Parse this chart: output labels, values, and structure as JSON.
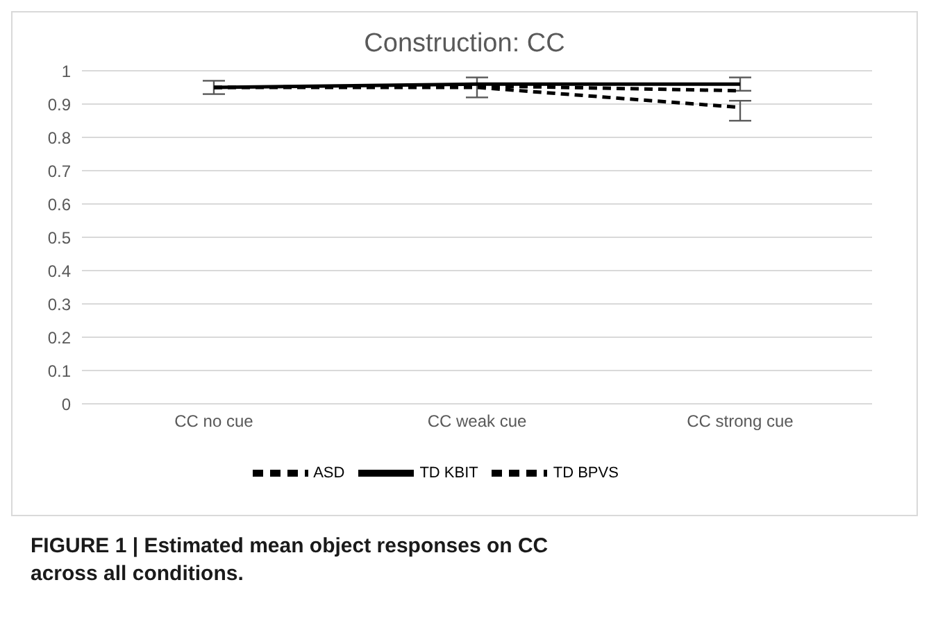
{
  "chart_data": {
    "type": "line",
    "title": "Construction: CC",
    "categories": [
      "CC no cue",
      "CC weak cue",
      "CC strong cue"
    ],
    "series": [
      {
        "name": "ASD",
        "color": "#000000",
        "line_style": "dashed",
        "values": [
          0.95,
          0.95,
          0.89
        ],
        "errors": [
          null,
          0.03,
          [
            0.85,
            0.91
          ]
        ]
      },
      {
        "name": "TD KBIT",
        "color": "#000000",
        "line_style": "solid",
        "values": [
          0.95,
          0.96,
          0.96
        ],
        "errors": [
          0.02,
          null,
          0.02
        ]
      },
      {
        "name": "TD BPVS",
        "color": "#000000",
        "line_style": "dashed",
        "values": [
          0.95,
          0.955,
          0.94
        ],
        "errors": [
          null,
          null,
          null
        ]
      }
    ],
    "ylim": [
      0,
      1
    ],
    "yticks": [
      0,
      0.1,
      0.2,
      0.3,
      0.4,
      0.5,
      0.6,
      0.7,
      0.8,
      0.9,
      1
    ],
    "grid": "y",
    "legend": "bottom",
    "marker": "none",
    "annotations": [
      "FIGURE 1 | Estimated mean object responses on CC across all conditions."
    ]
  }
}
